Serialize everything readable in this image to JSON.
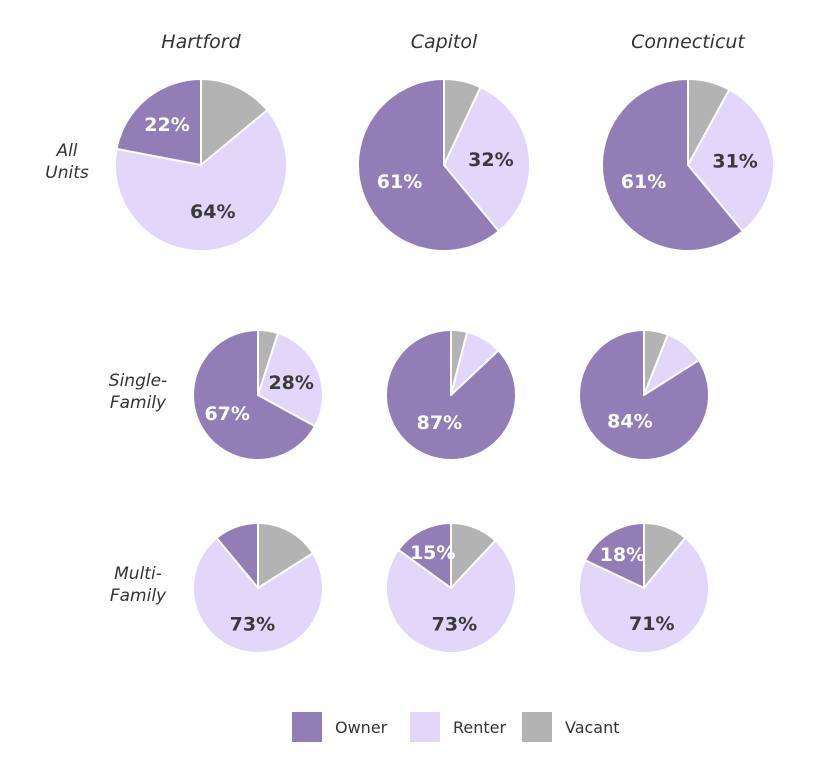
{
  "chart_data": {
    "type": "pie",
    "columns": [
      "Hartford",
      "Capitol",
      "Connecticut"
    ],
    "rows": [
      [
        "All",
        "Units"
      ],
      [
        "Single-",
        "Family"
      ],
      [
        "Multi-",
        "Family"
      ]
    ],
    "series": [
      {
        "name": "Owner",
        "color": "#927db6"
      },
      {
        "name": "Renter",
        "color": "#e2d6fb"
      },
      {
        "name": "Vacant",
        "color": "#b3b3b3"
      }
    ],
    "panels": [
      {
        "row": 0,
        "col": 0,
        "values": [
          22,
          64,
          14
        ],
        "labels": [
          "22%",
          "64%",
          ""
        ]
      },
      {
        "row": 0,
        "col": 1,
        "values": [
          61,
          32,
          7
        ],
        "labels": [
          "61%",
          "32%",
          ""
        ]
      },
      {
        "row": 0,
        "col": 2,
        "values": [
          61,
          31,
          8
        ],
        "labels": [
          "61%",
          "31%",
          ""
        ]
      },
      {
        "row": 1,
        "col": 0,
        "values": [
          67,
          28,
          5
        ],
        "labels": [
          "67%",
          "28%",
          ""
        ]
      },
      {
        "row": 1,
        "col": 1,
        "values": [
          87,
          9,
          4
        ],
        "labels": [
          "87%",
          "",
          ""
        ]
      },
      {
        "row": 1,
        "col": 2,
        "values": [
          84,
          10,
          6
        ],
        "labels": [
          "84%",
          "",
          ""
        ]
      },
      {
        "row": 2,
        "col": 0,
        "values": [
          11,
          73,
          16
        ],
        "labels": [
          "",
          "73%",
          ""
        ]
      },
      {
        "row": 2,
        "col": 1,
        "values": [
          15,
          73,
          12
        ],
        "labels": [
          "15%",
          "73%",
          ""
        ]
      },
      {
        "row": 2,
        "col": 2,
        "values": [
          18,
          71,
          11
        ],
        "labels": [
          "18%",
          "71%",
          ""
        ]
      }
    ],
    "legend": [
      "Owner",
      "Renter",
      "Vacant"
    ],
    "legend_position": "bottom-center"
  }
}
